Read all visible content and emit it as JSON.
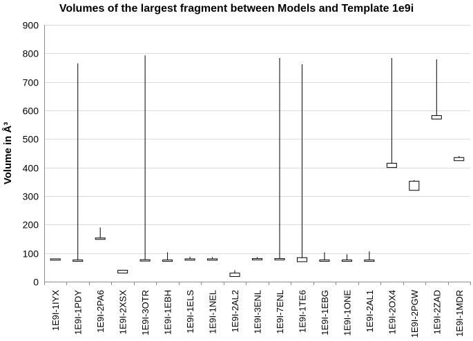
{
  "chart_data": {
    "type": "box",
    "title": "Volumes of the largest fragment between Models and Template 1e9i",
    "ylabel": "Volume in Å³",
    "xlabel": "",
    "ylim": [
      0,
      900
    ],
    "yticks": [
      0,
      100,
      200,
      300,
      400,
      500,
      600,
      700,
      800,
      900
    ],
    "grid": true,
    "categories": [
      "1E9I-1IYX",
      "1E9I-1PDY",
      "1E9I-2PA6",
      "1E9I-2XSX",
      "1E9I-3OTR",
      "1E9I-1EBH",
      "1E9I-1ELS",
      "1E9I-1NEL",
      "1E9I-2AL2",
      "1E9I-3ENL",
      "1E9I-7ENL",
      "1E9I-1TE6",
      "1E9I-1EBG",
      "1E9I-1ONE",
      "1E9I-2AL1",
      "1E9I-2OX4",
      "1E9I-2PGW",
      "1E9I-2ZAD",
      "1E9I-1MDR"
    ],
    "boxes": [
      {
        "min": 77,
        "q1": 77,
        "q3": 80,
        "max": 80
      },
      {
        "min": 73,
        "q1": 73,
        "q3": 76,
        "max": 765
      },
      {
        "min": 150,
        "q1": 150,
        "q3": 153,
        "max": 190
      },
      {
        "min": 30,
        "q1": 30,
        "q3": 40,
        "max": 40
      },
      {
        "min": 73,
        "q1": 73,
        "q3": 77,
        "max": 793
      },
      {
        "min": 72,
        "q1": 72,
        "q3": 76,
        "max": 103
      },
      {
        "min": 77,
        "q1": 77,
        "q3": 80,
        "max": 87
      },
      {
        "min": 77,
        "q1": 77,
        "q3": 80,
        "max": 86
      },
      {
        "min": 18,
        "q1": 18,
        "q3": 30,
        "max": 40
      },
      {
        "min": 77,
        "q1": 77,
        "q3": 81,
        "max": 86
      },
      {
        "min": 76,
        "q1": 76,
        "q3": 81,
        "max": 784
      },
      {
        "min": 70,
        "q1": 70,
        "q3": 84,
        "max": 762
      },
      {
        "min": 72,
        "q1": 72,
        "q3": 76,
        "max": 103
      },
      {
        "min": 72,
        "q1": 72,
        "q3": 76,
        "max": 96
      },
      {
        "min": 72,
        "q1": 72,
        "q3": 76,
        "max": 106
      },
      {
        "min": 400,
        "q1": 400,
        "q3": 415,
        "max": 784
      },
      {
        "min": 320,
        "q1": 320,
        "q3": 352,
        "max": 356
      },
      {
        "min": 570,
        "q1": 570,
        "q3": 582,
        "max": 779
      },
      {
        "min": 424,
        "q1": 424,
        "q3": 435,
        "max": 440
      }
    ]
  }
}
